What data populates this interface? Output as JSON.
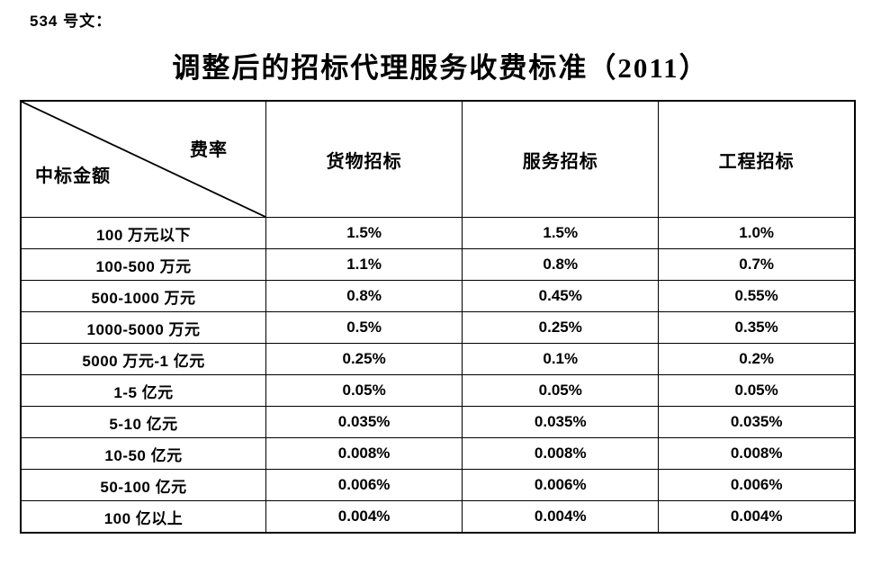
{
  "doc_ref": "534 号文：",
  "title": "调整后的招标代理服务收费标准（2011）",
  "table": {
    "corner": {
      "top_right": "费率",
      "bottom_left": "中标金额"
    },
    "columns": [
      "货物招标",
      "服务招标",
      "工程招标"
    ],
    "rows": [
      {
        "label": "100 万元以下",
        "values": [
          "1.5%",
          "1.5%",
          "1.0%"
        ]
      },
      {
        "label": "100-500 万元",
        "values": [
          "1.1%",
          "0.8%",
          "0.7%"
        ]
      },
      {
        "label": "500-1000 万元",
        "values": [
          "0.8%",
          "0.45%",
          "0.55%"
        ]
      },
      {
        "label": "1000-5000 万元",
        "values": [
          "0.5%",
          "0.25%",
          "0.35%"
        ]
      },
      {
        "label": "5000 万元-1 亿元",
        "values": [
          "0.25%",
          "0.1%",
          "0.2%"
        ]
      },
      {
        "label": "1-5 亿元",
        "values": [
          "0.05%",
          "0.05%",
          "0.05%"
        ]
      },
      {
        "label": "5-10 亿元",
        "values": [
          "0.035%",
          "0.035%",
          "0.035%"
        ]
      },
      {
        "label": "10-50 亿元",
        "values": [
          "0.008%",
          "0.008%",
          "0.008%"
        ]
      },
      {
        "label": "50-100 亿元",
        "values": [
          "0.006%",
          "0.006%",
          "0.006%"
        ]
      },
      {
        "label": "100 亿以上",
        "values": [
          "0.004%",
          "0.004%",
          "0.004%"
        ]
      }
    ]
  },
  "colors": {
    "text": "#000000",
    "background": "#ffffff",
    "border": "#000000"
  }
}
